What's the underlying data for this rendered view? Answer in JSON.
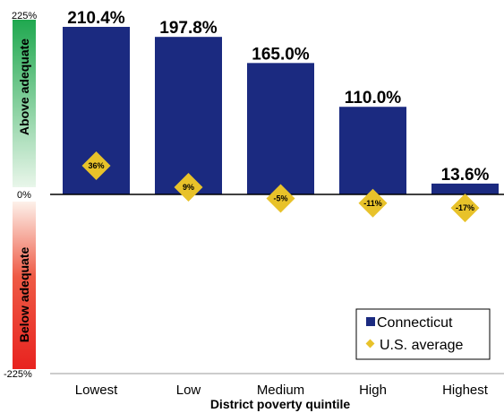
{
  "chart_data": {
    "type": "bar",
    "categories": [
      "Lowest",
      "Low",
      "Medium",
      "High",
      "Highest"
    ],
    "series": [
      {
        "name": "Connecticut",
        "type": "bar",
        "values": [
          210.4,
          197.8,
          165.0,
          110.0,
          13.6
        ],
        "labels": [
          "210.4%",
          "197.8%",
          "165.0%",
          "110.0%",
          "13.6%"
        ],
        "color": "#1b2a80"
      },
      {
        "name": "U.S. average",
        "type": "marker",
        "values": [
          36,
          9,
          -5,
          -11,
          -17
        ],
        "labels": [
          "36%",
          "9%",
          "-5%",
          "-11%",
          "-17%"
        ],
        "color": "#e8c22a"
      }
    ],
    "xlabel": "District poverty quintile",
    "ylim": [
      -225,
      225
    ],
    "yticks": [
      225,
      0,
      -225
    ],
    "ytick_labels": [
      "225%",
      "0%",
      "-225%"
    ],
    "bands": {
      "above": "Above adequate",
      "below": "Below adequate"
    },
    "legend": "bottom-right",
    "colors": {
      "bar": "#1b2a80",
      "marker": "#e8c22a",
      "above_band": "#1fa84f",
      "below_band": "#e8231f"
    }
  }
}
